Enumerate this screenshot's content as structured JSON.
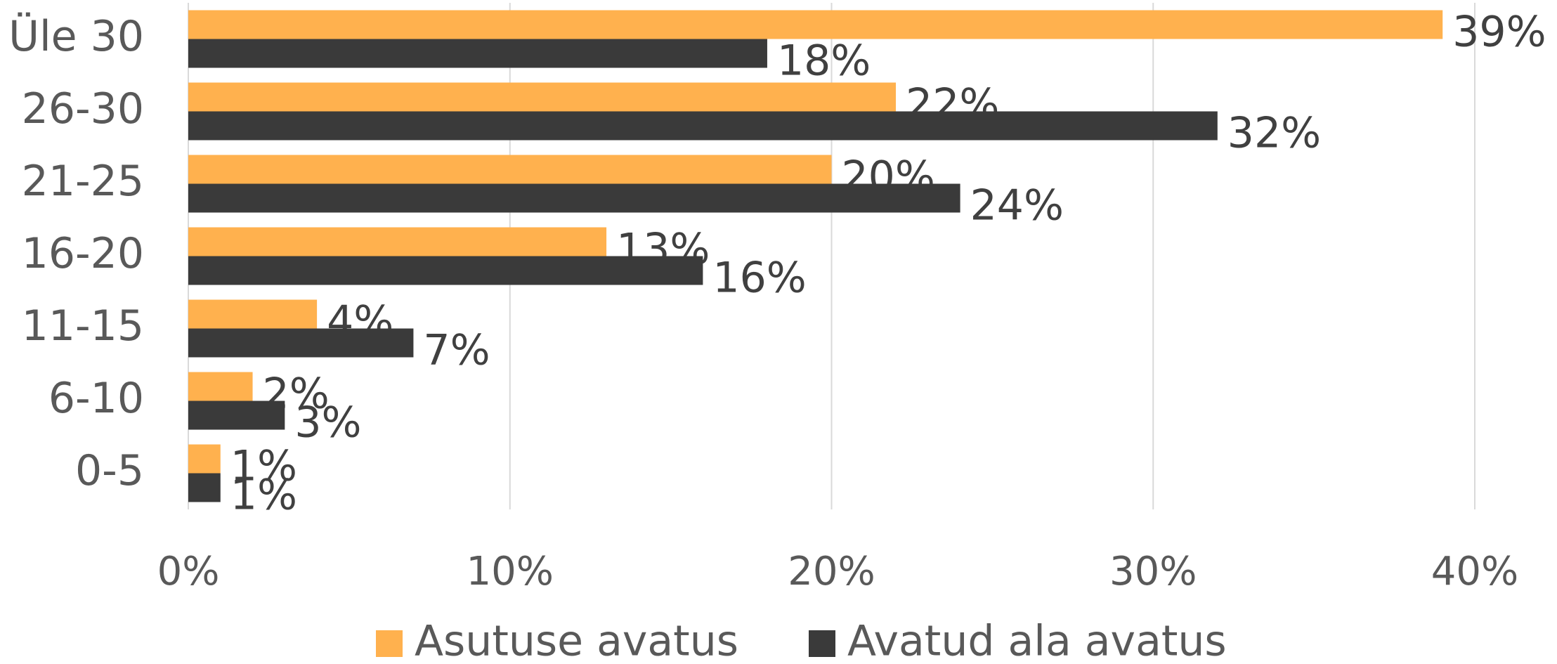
{
  "chart_data": {
    "type": "hbar",
    "categories": [
      "Üle 30",
      "26-30",
      "21-25",
      "16-20",
      "11-15",
      "6-10",
      "0-5"
    ],
    "series": [
      {
        "name": "Asutuse avatus",
        "color": "#ffb14e",
        "values": [
          39,
          22,
          20,
          13,
          4,
          2,
          1
        ],
        "value_labels": [
          "39%",
          "22%",
          "20%",
          "13%",
          "4%",
          "2%",
          "1%"
        ]
      },
      {
        "name": "Avatud ala avatus",
        "color": "#3a3a3a",
        "values": [
          18,
          32,
          24,
          16,
          7,
          3,
          1
        ],
        "value_labels": [
          "18%",
          "32%",
          "24%",
          "16%",
          "7%",
          "3%",
          "1%"
        ]
      }
    ],
    "xlim": [
      0,
      40
    ],
    "xticks": [
      {
        "value": 0,
        "label": "0%"
      },
      {
        "value": 10,
        "label": "10%"
      },
      {
        "value": 20,
        "label": "20%"
      },
      {
        "value": 30,
        "label": "30%"
      },
      {
        "value": 40,
        "label": "40%"
      }
    ],
    "grid": true,
    "legend": "bottom"
  }
}
